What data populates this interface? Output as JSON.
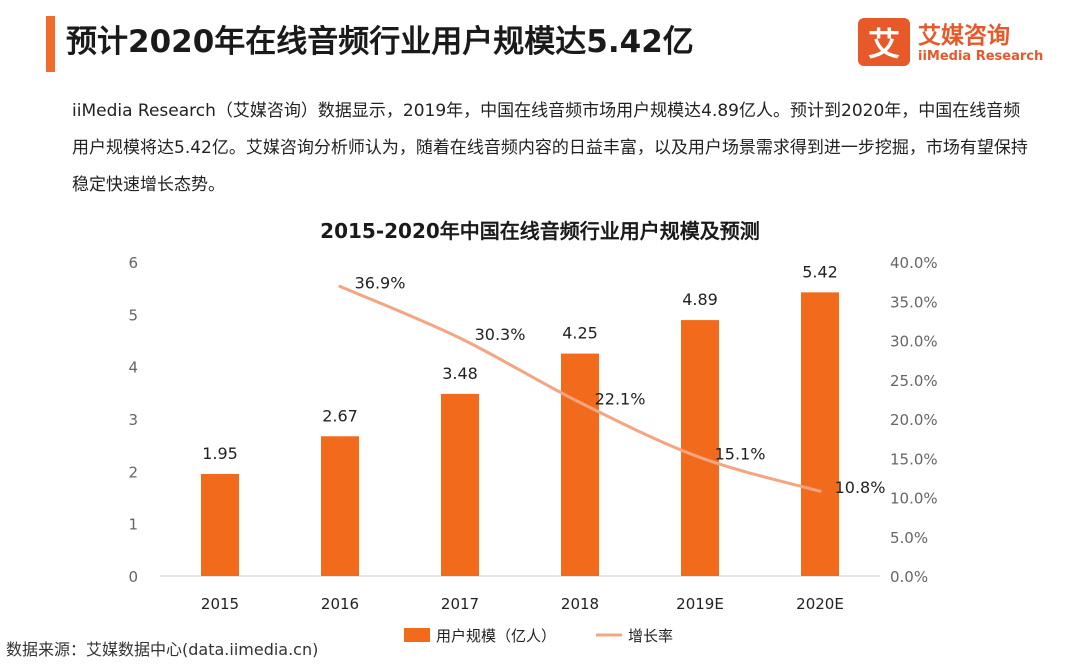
{
  "header": {
    "title": "预计2020年在线音频行业用户规模达5.42亿",
    "accent_color": "#ef6c2b"
  },
  "logo": {
    "glyph": "艾",
    "name_cn": "艾媒咨询",
    "name_en": "iiMedia Research",
    "color": "#e8592a"
  },
  "intro": {
    "text": "iiMedia Research（艾媒咨询）数据显示，2019年，中国在线音频市场用户规模达4.89亿人。预计到2020年，中国在线音频用户规模将达5.42亿。艾媒咨询分析师认为，随着在线音频内容的日益丰富，以及用户场景需求得到进一步挖掘，市场有望保持稳定快速增长态势。"
  },
  "source": "数据来源：艾媒数据中心(data.iimedia.cn)",
  "chart_data": {
    "type": "bar",
    "title": "2015-2020年中国在线音频行业用户规模及预测",
    "categories": [
      "2015",
      "2016",
      "2017",
      "2018",
      "2019E",
      "2020E"
    ],
    "series": [
      {
        "name": "用户规模（亿人）",
        "type": "bar",
        "axis": "left",
        "color": "#f26b1d",
        "values": [
          1.95,
          2.67,
          3.48,
          4.25,
          4.89,
          5.42
        ],
        "labels": [
          "1.95",
          "2.67",
          "3.48",
          "4.25",
          "4.89",
          "5.42"
        ]
      },
      {
        "name": "增长率",
        "type": "line",
        "axis": "right",
        "color": "#f4a582",
        "values": [
          null,
          36.9,
          30.3,
          22.1,
          15.1,
          10.8
        ],
        "labels": [
          "",
          "36.9%",
          "30.3%",
          "22.1%",
          "15.1%",
          "10.8%"
        ]
      }
    ],
    "y_left": {
      "min": 0,
      "max": 6,
      "ticks": [
        "0",
        "1",
        "2",
        "3",
        "4",
        "5",
        "6"
      ]
    },
    "y_right": {
      "min": 0,
      "max": 40,
      "ticks": [
        "0.0%",
        "5.0%",
        "10.0%",
        "15.0%",
        "20.0%",
        "25.0%",
        "30.0%",
        "35.0%",
        "40.0%"
      ]
    },
    "grid": false,
    "legend_position": "bottom"
  }
}
